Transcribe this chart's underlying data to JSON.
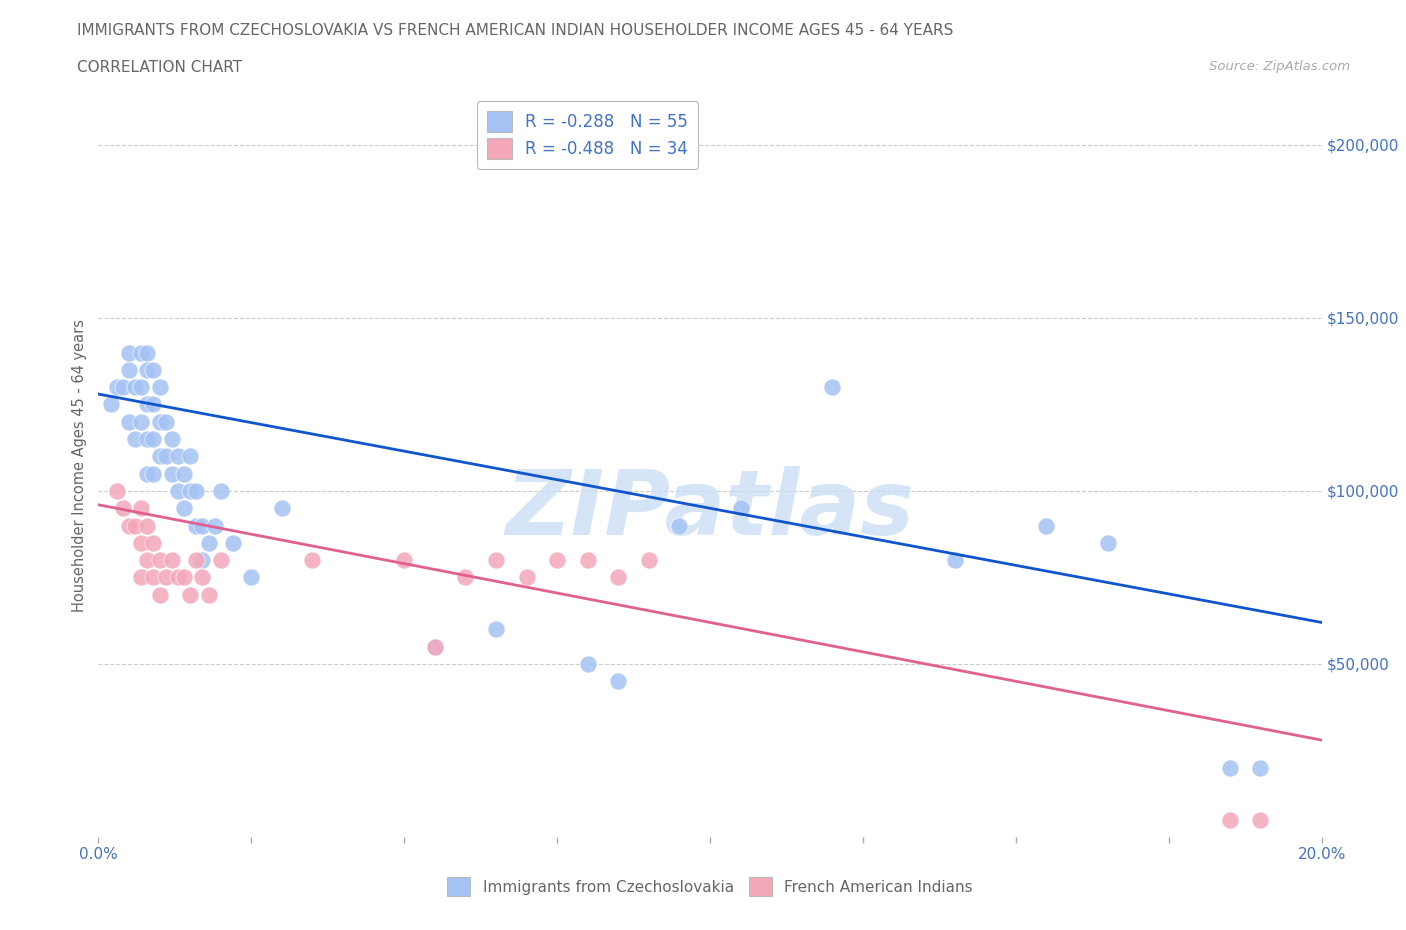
{
  "title": "IMMIGRANTS FROM CZECHOSLOVAKIA VS FRENCH AMERICAN INDIAN HOUSEHOLDER INCOME AGES 45 - 64 YEARS",
  "subtitle": "CORRELATION CHART",
  "source": "Source: ZipAtlas.com",
  "ylabel": "Householder Income Ages 45 - 64 years",
  "xlim": [
    0.0,
    0.2
  ],
  "ylim": [
    0,
    215000
  ],
  "yticks": [
    0,
    50000,
    100000,
    150000,
    200000
  ],
  "ytick_labels": [
    "",
    "$50,000",
    "$100,000",
    "$150,000",
    "$200,000"
  ],
  "xticks": [
    0.0,
    0.025,
    0.05,
    0.075,
    0.1,
    0.125,
    0.15,
    0.175,
    0.2
  ],
  "xtick_labels_left": "0.0%",
  "xtick_labels_right": "20.0%",
  "blue_scatter_x": [
    0.002,
    0.003,
    0.004,
    0.005,
    0.005,
    0.005,
    0.006,
    0.006,
    0.007,
    0.007,
    0.007,
    0.008,
    0.008,
    0.008,
    0.008,
    0.008,
    0.009,
    0.009,
    0.009,
    0.009,
    0.01,
    0.01,
    0.01,
    0.011,
    0.011,
    0.012,
    0.012,
    0.013,
    0.013,
    0.014,
    0.014,
    0.015,
    0.015,
    0.016,
    0.016,
    0.017,
    0.017,
    0.018,
    0.019,
    0.02,
    0.022,
    0.025,
    0.03,
    0.055,
    0.065,
    0.08,
    0.085,
    0.095,
    0.105,
    0.12,
    0.14,
    0.155,
    0.165,
    0.185,
    0.19
  ],
  "blue_scatter_y": [
    125000,
    130000,
    130000,
    135000,
    140000,
    120000,
    130000,
    115000,
    140000,
    130000,
    120000,
    140000,
    135000,
    125000,
    115000,
    105000,
    135000,
    125000,
    115000,
    105000,
    130000,
    120000,
    110000,
    120000,
    110000,
    115000,
    105000,
    110000,
    100000,
    105000,
    95000,
    110000,
    100000,
    100000,
    90000,
    90000,
    80000,
    85000,
    90000,
    100000,
    85000,
    75000,
    95000,
    55000,
    60000,
    50000,
    45000,
    90000,
    95000,
    130000,
    80000,
    90000,
    85000,
    20000,
    20000
  ],
  "pink_scatter_x": [
    0.003,
    0.004,
    0.005,
    0.006,
    0.007,
    0.007,
    0.007,
    0.008,
    0.008,
    0.009,
    0.009,
    0.01,
    0.01,
    0.011,
    0.012,
    0.013,
    0.014,
    0.015,
    0.016,
    0.017,
    0.018,
    0.02,
    0.035,
    0.05,
    0.055,
    0.06,
    0.065,
    0.07,
    0.075,
    0.08,
    0.085,
    0.09,
    0.185,
    0.19
  ],
  "pink_scatter_y": [
    100000,
    95000,
    90000,
    90000,
    95000,
    85000,
    75000,
    90000,
    80000,
    85000,
    75000,
    80000,
    70000,
    75000,
    80000,
    75000,
    75000,
    70000,
    80000,
    75000,
    70000,
    80000,
    80000,
    80000,
    55000,
    75000,
    80000,
    75000,
    80000,
    80000,
    75000,
    80000,
    5000,
    5000
  ],
  "blue_color": "#a4c2f4",
  "pink_color": "#f4a7b9",
  "blue_line_color": "#1155cc",
  "pink_line_color": "#e06090",
  "legend_R_blue": "R = -0.288",
  "legend_N_blue": "N = 55",
  "legend_R_pink": "R = -0.488",
  "legend_N_pink": "N = 34",
  "legend_label_blue": "Immigrants from Czechoslovakia",
  "legend_label_pink": "French American Indians",
  "watermark": "ZIPatlas",
  "background_color": "#ffffff",
  "grid_color": "#cccccc",
  "title_color": "#666666",
  "axis_label_color": "#666666",
  "tick_color": "#4472c4",
  "blue_trend_x0": 0.0,
  "blue_trend_x1": 0.2,
  "blue_trend_y0": 128000,
  "blue_trend_y1": 62000,
  "pink_trend_x0": 0.0,
  "pink_trend_x1": 0.2,
  "pink_trend_y0": 96000,
  "pink_trend_y1": 28000
}
